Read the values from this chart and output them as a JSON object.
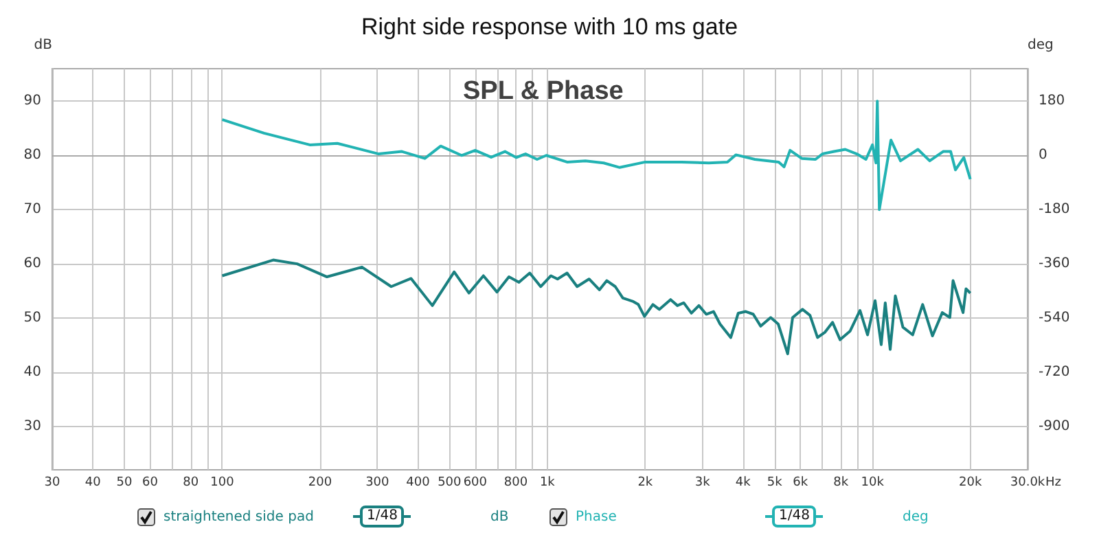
{
  "chart_data": {
    "type": "line",
    "title": "Right side response with 10 ms gate",
    "subtitle": "SPL & Phase",
    "ylabel": "dB",
    "y2label": "deg",
    "annotations": [
      "1/48",
      "1/48"
    ],
    "series": [
      {
        "name": "straightened side pad",
        "color": "#1a8080",
        "x": [
          100,
          143.5,
          170,
          210,
          269,
          331,
          381,
          443,
          517,
          574,
          636,
          700,
          762,
          818,
          883,
          954,
          1026,
          1075,
          1150,
          1235,
          1344,
          1446,
          1524,
          1618,
          1707,
          1829,
          1905,
          1990,
          2112,
          2210,
          2394,
          2513,
          2628,
          2774,
          2925,
          3082,
          3246,
          3398,
          3667,
          3866,
          4077,
          4299,
          4532,
          4864,
          5130,
          5486,
          5683,
          6093,
          6426,
          6778,
          7149,
          7540,
          7953,
          8538,
          9158,
          9658,
          10190,
          10640,
          10950,
          11340,
          11760,
          12410,
          13300,
          14270,
          15300,
          16400,
          17300,
          17700,
          19000,
          19400,
          20000
        ],
        "values": [
          57.8,
          60.7,
          60.0,
          57.6,
          59.4,
          55.8,
          57.3,
          52.3,
          58.5,
          54.6,
          57.8,
          54.8,
          57.6,
          56.6,
          58.3,
          55.8,
          57.8,
          57.2,
          58.3,
          55.8,
          57.2,
          55.2,
          56.9,
          55.8,
          53.7,
          53.1,
          52.5,
          50.3,
          52.5,
          51.6,
          53.4,
          52.3,
          52.8,
          50.9,
          52.3,
          50.7,
          51.2,
          48.9,
          46.4,
          50.9,
          51.2,
          50.7,
          48.5,
          50.1,
          48.9,
          43.4,
          50.1,
          51.6,
          50.5,
          46.4,
          47.4,
          49.2,
          46.0,
          47.6,
          51.4,
          46.9,
          53.2,
          45.1,
          52.8,
          44.2,
          54.1,
          48.3,
          46.9,
          52.5,
          46.7,
          51.0,
          50.1,
          56.9,
          51.0,
          55.4,
          54.6
        ]
      },
      {
        "name": "Phase",
        "color": "#22b3b3",
        "axis": "y2",
        "x": [
          100,
          134.5,
          186,
          226,
          303,
          357,
          420,
          470,
          545,
          600,
          672,
          741,
          802,
          857,
          930,
          993,
          1150,
          1310,
          1490,
          1670,
          2000,
          2590,
          3140,
          3580,
          3800,
          4350,
          5150,
          5350,
          5580,
          6060,
          6680,
          7020,
          7620,
          8250,
          8950,
          9550,
          10000,
          10250,
          10350,
          10500,
          11400,
          12200,
          13800,
          15000,
          16500,
          17400,
          18000,
          19100,
          20000
        ],
        "values": [
          119,
          74,
          35,
          40,
          5,
          13,
          -10,
          31,
          0,
          17,
          -6,
          13,
          -7,
          5,
          -13,
          0,
          -22,
          -18,
          -25,
          -40,
          -22,
          -22,
          -25,
          -22,
          2,
          -13,
          -22,
          -38,
          17,
          -10,
          -13,
          5,
          13,
          20,
          5,
          -13,
          35,
          -25,
          180,
          -180,
          51,
          -18,
          20,
          -18,
          13,
          13,
          -48,
          -7,
          -79
        ]
      }
    ],
    "xlim": [
      30,
      30000
    ],
    "xticks": [
      30,
      40,
      50,
      60,
      {
        "value": 70,
        "label": null
      },
      80,
      {
        "value": 90,
        "label": null
      },
      100,
      200,
      300,
      400,
      500,
      600,
      {
        "value": 700,
        "label": null
      },
      800,
      {
        "value": 900,
        "label": null
      },
      {
        "value": 1000,
        "label": "1k"
      },
      {
        "value": 2000,
        "label": "2k"
      },
      {
        "value": 3000,
        "label": "3k"
      },
      {
        "value": 4000,
        "label": "4k"
      },
      {
        "value": 5000,
        "label": "5k"
      },
      {
        "value": 6000,
        "label": "6k"
      },
      {
        "value": 7000,
        "label": null
      },
      {
        "value": 8000,
        "label": "8k"
      },
      {
        "value": 9000,
        "label": null
      },
      {
        "value": 10000,
        "label": "10k"
      },
      {
        "value": 20000,
        "label": "20k"
      },
      {
        "value": 30000,
        "label": "30.0k"
      }
    ],
    "xlabel": "Hz",
    "ylim": [
      22,
      96
    ],
    "yticks": [
      30,
      40,
      50,
      60,
      70,
      80,
      90
    ],
    "y2lim": [
      -1044,
      288
    ],
    "y2ticks": [
      -900,
      -720,
      -540,
      -360,
      -180,
      0,
      180
    ],
    "log": "x",
    "grid": true,
    "legend": "bottom",
    "marker": "none"
  }
}
